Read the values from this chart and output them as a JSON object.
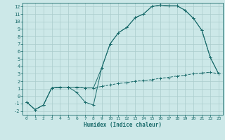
{
  "bg_color": "#cce8e8",
  "grid_color": "#aacccc",
  "line_color": "#1a6b6b",
  "xlabel": "Humidex (Indice chaleur)",
  "xlim": [
    -0.5,
    23.5
  ],
  "ylim": [
    -2.5,
    12.5
  ],
  "xticks": [
    0,
    1,
    2,
    3,
    4,
    5,
    6,
    7,
    8,
    9,
    10,
    11,
    12,
    13,
    14,
    15,
    16,
    17,
    18,
    19,
    20,
    21,
    22,
    23
  ],
  "yticks": [
    -2,
    -1,
    0,
    1,
    2,
    3,
    4,
    5,
    6,
    7,
    8,
    9,
    10,
    11,
    12
  ],
  "line1_x": [
    0,
    1,
    2,
    3,
    4,
    5,
    6,
    7,
    8,
    9,
    10,
    11,
    12,
    13,
    14,
    15,
    16,
    17,
    18,
    19,
    20,
    21,
    22,
    23
  ],
  "line1_y": [
    -0.8,
    -1.8,
    -1.2,
    1.1,
    1.2,
    1.2,
    1.2,
    1.1,
    1.1,
    3.8,
    7.0,
    8.5,
    9.2,
    10.5,
    11.0,
    12.0,
    12.2,
    12.1,
    12.1,
    11.5,
    10.4,
    8.8,
    5.2,
    3.0
  ],
  "line2_x": [
    0,
    1,
    2,
    3,
    4,
    5,
    6,
    7,
    8,
    9,
    10,
    11,
    12,
    13,
    14,
    15,
    16,
    17,
    18,
    19,
    20,
    21,
    22,
    23
  ],
  "line2_y": [
    -0.8,
    -1.8,
    -1.2,
    1.1,
    1.2,
    1.2,
    0.5,
    -0.8,
    -1.2,
    3.8,
    7.0,
    8.5,
    9.2,
    10.5,
    11.0,
    12.0,
    12.2,
    12.1,
    12.1,
    11.5,
    10.4,
    8.8,
    5.2,
    3.0
  ],
  "line3_x": [
    0,
    1,
    2,
    3,
    4,
    5,
    6,
    7,
    8,
    9,
    10,
    11,
    12,
    13,
    14,
    15,
    16,
    17,
    18,
    19,
    20,
    21,
    22,
    23
  ],
  "line3_y": [
    -0.8,
    -1.8,
    -1.2,
    1.1,
    1.2,
    1.2,
    1.2,
    1.1,
    1.1,
    1.3,
    1.5,
    1.7,
    1.8,
    2.0,
    2.1,
    2.2,
    2.4,
    2.5,
    2.7,
    2.8,
    3.0,
    3.1,
    3.2,
    3.0
  ]
}
